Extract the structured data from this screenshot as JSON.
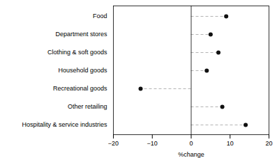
{
  "chart_data": {
    "type": "lollipop",
    "orientation": "horizontal",
    "categories": [
      "Hospitality & service industries",
      "Other retailing",
      "Recreational goods",
      "Household goods",
      "Clothing & soft goods",
      "Department stores",
      "Food"
    ],
    "values": [
      14.0,
      8.0,
      -13.0,
      4.0,
      7.0,
      5.0,
      9.0
    ],
    "xlim": [
      -20,
      20
    ],
    "xticks": [
      -20,
      -10,
      0,
      10,
      20
    ],
    "xlabel": "%change",
    "color": "#111111",
    "line_style": "dashed",
    "grid": false
  }
}
